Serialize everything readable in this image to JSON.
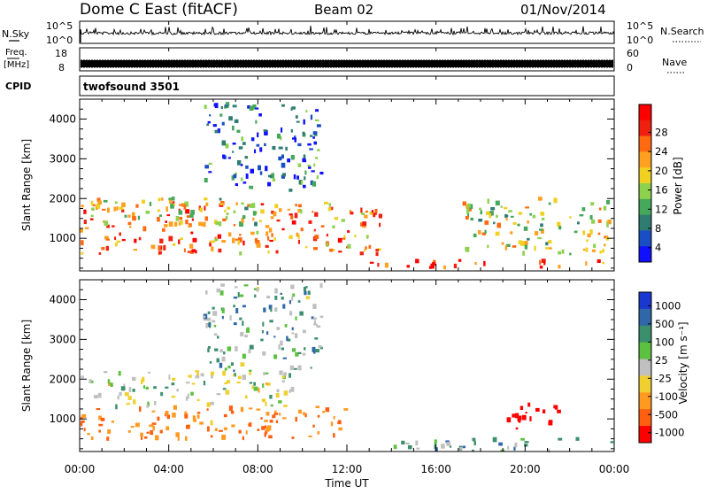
{
  "header": {
    "radar": "Dome C East (fitACF)",
    "beam": "Beam 02",
    "date": "01/Nov/2014"
  },
  "nsky_panel": {
    "left_label": "N.Sky",
    "left_top_tick": "10^5",
    "left_bottom_tick": "10^0",
    "right_top_tick": "10^5",
    "right_bottom_tick": "10^0",
    "right_label": "N.Search"
  },
  "freq_panel": {
    "left_label_line1": "Freq.",
    "left_label_line2": "[MHz]",
    "left_top_tick": "18",
    "left_bottom_tick": "8",
    "right_top_tick": "60",
    "right_bottom_tick": "0",
    "right_label": "Nave"
  },
  "cpid_panel": {
    "left_label": "CPID",
    "program": "twofsound 3501"
  },
  "x_axis": {
    "label": "Time UT",
    "ticks": [
      "00:00",
      "04:00",
      "08:00",
      "12:00",
      "16:00",
      "20:00",
      "00:00"
    ]
  },
  "power_colorbar": {
    "label": "Power [dB]",
    "ticks": [
      "4",
      "8",
      "12",
      "16",
      "20",
      "24",
      "28"
    ],
    "colors": [
      "#1010ff",
      "#1a4ec4",
      "#2f7d72",
      "#45a85a",
      "#8cd24e",
      "#f0d020",
      "#ffa020",
      "#ff6a10",
      "#f02010",
      "#ff0000"
    ]
  },
  "velocity_colorbar": {
    "label": "Velocity [m s⁻¹]",
    "ticks": [
      "1000",
      "500",
      "100",
      "25",
      "-25",
      "-100",
      "-500",
      "-1000"
    ],
    "colors": [
      "#1a38d0",
      "#2f67a8",
      "#3c8f6c",
      "#5cc040",
      "#c0c0c0",
      "#f0d030",
      "#ff9a20",
      "#ff6010",
      "#ff0000"
    ]
  },
  "chart_data": [
    {
      "type": "heatmap",
      "title": "Power",
      "xlabel": "Time UT",
      "ylabel": "Slant Range [km]",
      "x_ticks": [
        "00:00",
        "04:00",
        "08:00",
        "12:00",
        "16:00",
        "20:00",
        "00:00"
      ],
      "y_ticks": [
        1000,
        2000,
        3000,
        4000
      ],
      "xlim": [
        0,
        24
      ],
      "ylim": [
        180,
        4500
      ],
      "colorbar_label": "Power [dB]",
      "colorbar_ticks": [
        4,
        8,
        12,
        16,
        20,
        24,
        28
      ],
      "approx_features": [
        {
          "time_start": 0.0,
          "time_end": 13.5,
          "range_start": 600,
          "range_end": 1900,
          "typical_power_db": 22
        },
        {
          "time_start": 0.0,
          "time_end": 8.0,
          "range_start": 1300,
          "range_end": 2000,
          "typical_power_db": 16
        },
        {
          "time_start": 5.5,
          "time_end": 10.8,
          "range_start": 2200,
          "range_end": 4400,
          "typical_power_db": 8
        },
        {
          "time_start": 13.0,
          "time_end": 21.5,
          "range_start": 250,
          "range_end": 450,
          "typical_power_db": 26
        },
        {
          "time_start": 17.0,
          "time_end": 23.8,
          "range_start": 600,
          "range_end": 2000,
          "typical_power_db": 16
        },
        {
          "time_start": 22.5,
          "time_end": 24.0,
          "range_start": 250,
          "range_end": 450,
          "typical_power_db": 24
        }
      ]
    },
    {
      "type": "heatmap",
      "title": "Velocity",
      "xlabel": "Time UT",
      "ylabel": "Slant Range [km]",
      "x_ticks": [
        "00:00",
        "04:00",
        "08:00",
        "12:00",
        "16:00",
        "20:00",
        "00:00"
      ],
      "y_ticks": [
        1000,
        2000,
        3000,
        4000
      ],
      "xlim": [
        0,
        24
      ],
      "ylim": [
        180,
        4500
      ],
      "colorbar_label": "Velocity [m s⁻¹]",
      "colorbar_ticks": [
        1000,
        500,
        100,
        25,
        -25,
        -100,
        -500,
        -1000
      ],
      "approx_features": [
        {
          "time_start": 0.0,
          "time_end": 12.0,
          "range_start": 500,
          "range_end": 1300,
          "typical_velocity_ms": -150
        },
        {
          "time_start": 0.0,
          "time_end": 9.5,
          "range_start": 1300,
          "range_end": 2200,
          "typical_velocity_ms": 0
        },
        {
          "time_start": 5.5,
          "time_end": 10.8,
          "range_start": 2200,
          "range_end": 4400,
          "typical_velocity_ms": 50
        },
        {
          "time_start": 14.0,
          "time_end": 24.0,
          "range_start": 200,
          "range_end": 500,
          "typical_velocity_ms": 60
        },
        {
          "time_start": 19.0,
          "time_end": 21.5,
          "range_start": 700,
          "range_end": 1400,
          "typical_velocity_ms": -600
        }
      ]
    }
  ]
}
